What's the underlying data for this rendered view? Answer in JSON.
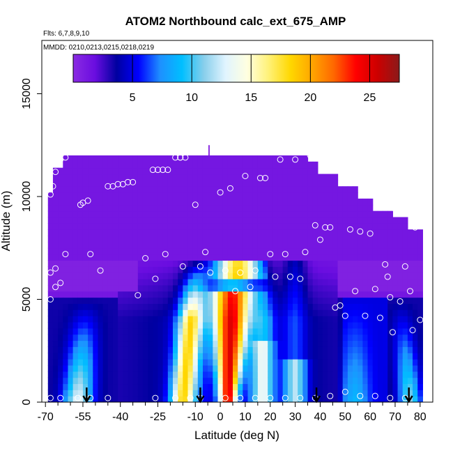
{
  "chart_data": {
    "type": "heatmap",
    "title": "ATOM2 Northbound calc_ext_675_AMP",
    "subtitle_flights": "Flts: 6,7,8,9,10",
    "subtitle_dates": "MMDD: 0210,0213,0215,0218,0219",
    "xlabel": "Latitude (deg N)",
    "ylabel": "Altitude (m)",
    "xlim": [
      -70,
      82
    ],
    "ylim": [
      0,
      17500
    ],
    "x_ticks": [
      -70,
      -55,
      -40,
      -25,
      -10,
      0,
      10,
      20,
      30,
      40,
      50,
      60,
      70,
      80
    ],
    "x_tick_labels": [
      "-70",
      "-55",
      "-40",
      "-25",
      "-10",
      "0",
      "10",
      "20",
      "30",
      "40",
      "50",
      "60",
      "70",
      "80"
    ],
    "x_minor_ticks": [
      -65,
      -60,
      -50,
      -45,
      -35,
      -30,
      -20,
      -15,
      -5,
      5,
      15,
      25,
      35,
      45,
      55,
      65,
      75
    ],
    "y_ticks": [
      0,
      5000,
      10000,
      15000
    ],
    "y_tick_labels": [
      "0",
      "5000",
      "10000",
      "15000"
    ],
    "colorbar": {
      "range": [
        0,
        27.5
      ],
      "ticks": [
        5,
        10,
        15,
        20,
        25
      ],
      "tick_labels": [
        "5",
        "10",
        "15",
        "20",
        "25"
      ],
      "colors": [
        "#8a2be2",
        "#6a0de0",
        "#0000a0",
        "#0000ff",
        "#1e90ff",
        "#00bfff",
        "#87ceeb",
        "#e0f4ff",
        "#ffffe0",
        "#fff176",
        "#ffd700",
        "#ffa500",
        "#ff6600",
        "#ff0000",
        "#cc0000",
        "#8b1a1a"
      ]
    },
    "arrows_lat": [
      -53.5,
      -8,
      38.5,
      75.5
    ],
    "flight_track_points": [
      [
        -68,
        10100
      ],
      [
        -67,
        10500
      ],
      [
        -66,
        11200
      ],
      [
        -64,
        11800
      ],
      [
        -62,
        11900
      ],
      [
        -68,
        6300
      ],
      [
        -66,
        6500
      ],
      [
        -64,
        5800
      ],
      [
        -62,
        7200
      ],
      [
        -68,
        5000
      ],
      [
        -66,
        5600
      ],
      [
        -56,
        9600
      ],
      [
        -55,
        9700
      ],
      [
        -53,
        9800
      ],
      [
        -52,
        7200
      ],
      [
        -48,
        6400
      ],
      [
        -45,
        10500
      ],
      [
        -43,
        10500
      ],
      [
        -41,
        10600
      ],
      [
        -39,
        10600
      ],
      [
        -37,
        10700
      ],
      [
        -35,
        10700
      ],
      [
        -27,
        11300
      ],
      [
        -25,
        11300
      ],
      [
        -23,
        11300
      ],
      [
        -21,
        11300
      ],
      [
        -18,
        11900
      ],
      [
        -16,
        11900
      ],
      [
        -30,
        7000
      ],
      [
        -33,
        5200
      ],
      [
        -26,
        6000
      ],
      [
        -22,
        7200
      ],
      [
        -15,
        6600
      ],
      [
        -10,
        9600
      ],
      [
        -8,
        6600
      ],
      [
        -6,
        7300
      ],
      [
        -4,
        6300
      ],
      [
        0,
        10200
      ],
      [
        2,
        6400
      ],
      [
        4,
        10400
      ],
      [
        6,
        5400
      ],
      [
        8,
        6300
      ],
      [
        10,
        11000
      ],
      [
        12,
        5600
      ],
      [
        14,
        6400
      ],
      [
        16,
        10900
      ],
      [
        18,
        10900
      ],
      [
        20,
        7200
      ],
      [
        22,
        6100
      ],
      [
        24,
        11800
      ],
      [
        26,
        7200
      ],
      [
        28,
        6100
      ],
      [
        30,
        11800
      ],
      [
        32,
        6000
      ],
      [
        34,
        7300
      ],
      [
        36,
        12000
      ],
      [
        38,
        8600
      ],
      [
        40,
        7900
      ],
      [
        42,
        8500
      ],
      [
        44,
        8500
      ],
      [
        46,
        4600
      ],
      [
        48,
        4700
      ],
      [
        50,
        4200
      ],
      [
        52,
        8400
      ],
      [
        54,
        5400
      ],
      [
        56,
        8300
      ],
      [
        58,
        4200
      ],
      [
        60,
        8200
      ],
      [
        62,
        5500
      ],
      [
        64,
        4100
      ],
      [
        66,
        6700
      ],
      [
        67,
        6100
      ],
      [
        68,
        5100
      ],
      [
        69,
        3400
      ],
      [
        70,
        9400
      ],
      [
        72,
        4900
      ],
      [
        74,
        6600
      ],
      [
        76,
        5400
      ],
      [
        77,
        3500
      ],
      [
        78,
        8500
      ],
      [
        80,
        4000
      ],
      [
        -68,
        200
      ],
      [
        -64,
        200
      ],
      [
        -57,
        200
      ],
      [
        -52,
        200
      ],
      [
        -45,
        200
      ],
      [
        -26,
        200
      ],
      [
        -18,
        200
      ],
      [
        -12,
        200
      ],
      [
        -8,
        200
      ],
      [
        2,
        200
      ],
      [
        8,
        200
      ],
      [
        14,
        200
      ],
      [
        20,
        200
      ],
      [
        26,
        200
      ],
      [
        32,
        200
      ],
      [
        38,
        200
      ],
      [
        44,
        300
      ],
      [
        50,
        500
      ],
      [
        56,
        300
      ],
      [
        62,
        300
      ],
      [
        68,
        200
      ],
      [
        74,
        200
      ],
      [
        -16,
        11900
      ],
      [
        -14,
        11900
      ]
    ]
  }
}
